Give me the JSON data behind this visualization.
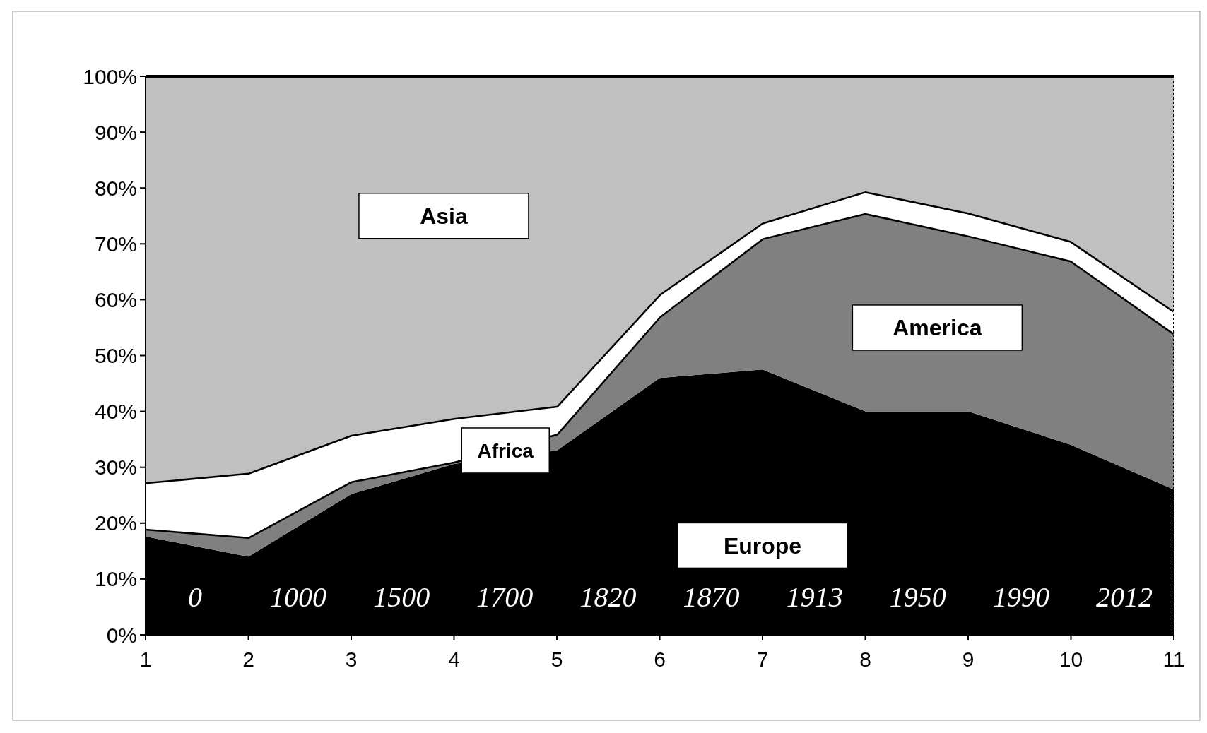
{
  "chart_data": {
    "type": "area",
    "stacked": true,
    "grid": false,
    "x": [
      1,
      2,
      3,
      4,
      5,
      6,
      7,
      8,
      9,
      10,
      11
    ],
    "xlim": [
      1,
      11
    ],
    "xticks": [
      1,
      2,
      3,
      4,
      5,
      6,
      7,
      8,
      9,
      10,
      11
    ],
    "ylim": [
      0,
      100
    ],
    "yticks": [
      {
        "value": 0,
        "label": "0%"
      },
      {
        "value": 10,
        "label": "10%"
      },
      {
        "value": 20,
        "label": "20%"
      },
      {
        "value": 30,
        "label": "30%"
      },
      {
        "value": 40,
        "label": "40%"
      },
      {
        "value": 50,
        "label": "50%"
      },
      {
        "value": 60,
        "label": "60%"
      },
      {
        "value": 70,
        "label": "70%"
      },
      {
        "value": 80,
        "label": "80%"
      },
      {
        "value": 90,
        "label": "90%"
      },
      {
        "value": 100,
        "label": "100%"
      }
    ],
    "series": [
      {
        "name": "Europe",
        "color": "#000000",
        "values": [
          17.6,
          14,
          25.2,
          30.6,
          33,
          46,
          47.5,
          40,
          40,
          34,
          26
        ]
      },
      {
        "name": "America",
        "color": "#808080",
        "values": [
          1.4,
          3.5,
          2.3,
          0.4,
          3,
          11,
          23.5,
          35.5,
          31.5,
          33,
          28
        ]
      },
      {
        "name": "Africa",
        "color": "#ffffff",
        "values": [
          8.3,
          11.5,
          8.3,
          7.8,
          5,
          4,
          2.8,
          3.9,
          4.1,
          3.5,
          4
        ]
      },
      {
        "name": "Asia",
        "color": "#c0c0c0",
        "values": [
          72.7,
          71,
          64.2,
          61.2,
          59,
          39,
          26.2,
          20.6,
          24.4,
          29.5,
          42
        ]
      }
    ],
    "annotations": [
      "0",
      "1000",
      "1500",
      "1700",
      "1820",
      "1870",
      "1913",
      "1950",
      "1990",
      "2012"
    ]
  }
}
